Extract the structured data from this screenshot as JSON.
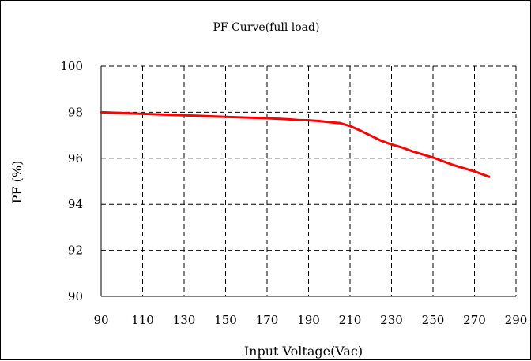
{
  "chart_data": {
    "type": "line",
    "title": "PF Curve(full load)",
    "xlabel": "Input Voltage(Vac)",
    "ylabel": "PF (%)",
    "xlim": [
      90,
      290
    ],
    "ylim": [
      90,
      100
    ],
    "x_ticks": [
      90,
      110,
      130,
      150,
      170,
      190,
      210,
      230,
      250,
      270,
      290
    ],
    "y_ticks": [
      90,
      92,
      94,
      96,
      98,
      100
    ],
    "grid": true,
    "grid_style": "dashed",
    "legend": "none",
    "series": [
      {
        "color": "#ff0000",
        "x": [
          90,
          110,
          130,
          150,
          170,
          180,
          185,
          190,
          195,
          200,
          205,
          210,
          215,
          220,
          225,
          230,
          235,
          240,
          250,
          260,
          270,
          277
        ],
        "y": [
          98.0,
          97.93,
          97.87,
          97.8,
          97.74,
          97.7,
          97.66,
          97.65,
          97.62,
          97.57,
          97.53,
          97.4,
          97.2,
          96.98,
          96.76,
          96.6,
          96.47,
          96.3,
          96.03,
          95.7,
          95.43,
          95.2
        ]
      }
    ]
  }
}
